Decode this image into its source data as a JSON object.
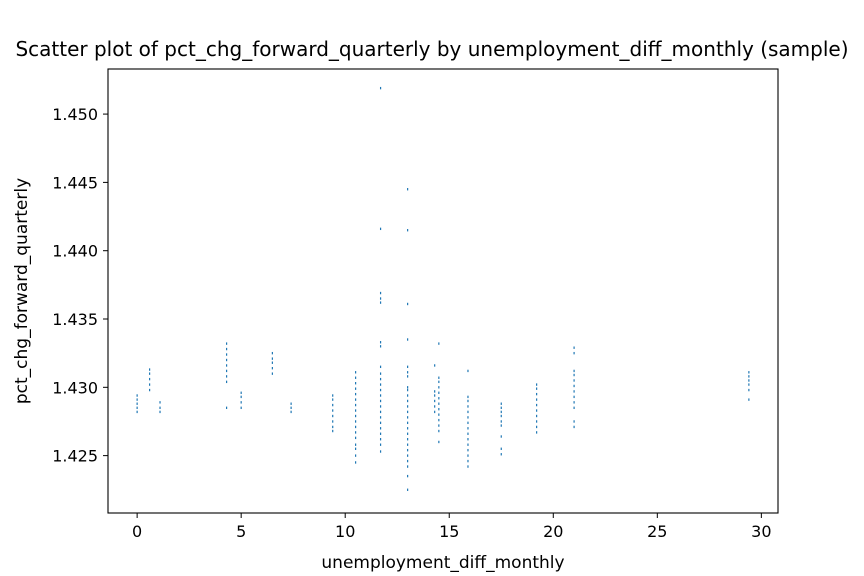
{
  "chart_data": {
    "type": "scatter",
    "title": "Scatter plot of pct_chg_forward_quarterly by unemployment_diff_monthly (sample)",
    "xlabel": "unemployment_diff_monthly",
    "ylabel": "pct_chg_forward_quarterly",
    "xlim": [
      -1.4,
      30.8
    ],
    "ylim": [
      1.4208,
      1.4533
    ],
    "xticks": [
      0,
      5,
      10,
      15,
      20,
      25,
      30
    ],
    "xtick_labels": [
      "0",
      "5",
      "10",
      "15",
      "20",
      "25",
      "30"
    ],
    "yticks": [
      1.425,
      1.43,
      1.435,
      1.44,
      1.445,
      1.45
    ],
    "ytick_labels": [
      "1.425",
      "1.430",
      "1.435",
      "1.440",
      "1.445",
      "1.450"
    ],
    "grid": false,
    "marker_color": "#1f77b4",
    "series": [
      {
        "x": 0.0,
        "y": [
          1.4282,
          1.4285,
          1.4288,
          1.4291,
          1.4294
        ]
      },
      {
        "x": 0.6,
        "y": [
          1.4298,
          1.4302,
          1.4306,
          1.431,
          1.4313
        ]
      },
      {
        "x": 1.1,
        "y": [
          1.4282,
          1.4285,
          1.4289
        ]
      },
      {
        "x": 4.3,
        "y": [
          1.4285,
          1.4304,
          1.4308,
          1.4312,
          1.4316,
          1.432,
          1.4324,
          1.4328,
          1.4332
        ]
      },
      {
        "x": 5.0,
        "y": [
          1.4285,
          1.4289,
          1.4293,
          1.4296
        ]
      },
      {
        "x": 6.5,
        "y": [
          1.431,
          1.4314,
          1.4318,
          1.4321,
          1.4325
        ]
      },
      {
        "x": 7.4,
        "y": [
          1.4282,
          1.4285,
          1.4288
        ]
      },
      {
        "x": 9.4,
        "y": [
          1.4268,
          1.4271,
          1.4275,
          1.4279,
          1.4283,
          1.4287,
          1.4291,
          1.4294
        ]
      },
      {
        "x": 10.5,
        "y": [
          1.4245,
          1.425,
          1.4255,
          1.4258,
          1.4263,
          1.4267,
          1.4271,
          1.4275,
          1.4279,
          1.4283,
          1.4287,
          1.4291,
          1.4295,
          1.4299,
          1.4303,
          1.4307,
          1.4311
        ]
      },
      {
        "x": 11.7,
        "y": [
          1.4253,
          1.4258,
          1.4262,
          1.4266,
          1.427,
          1.4274,
          1.4278,
          1.4282,
          1.4286,
          1.429,
          1.4294,
          1.4298,
          1.4302,
          1.4306,
          1.431,
          1.4315,
          1.433,
          1.4333,
          1.4362,
          1.4365,
          1.4369,
          1.4416,
          1.4519
        ]
      },
      {
        "x": 13.0,
        "y": [
          1.4225,
          1.4235,
          1.4242,
          1.4246,
          1.425,
          1.4254,
          1.4258,
          1.4262,
          1.4266,
          1.427,
          1.4274,
          1.4278,
          1.4282,
          1.4286,
          1.429,
          1.4294,
          1.4298,
          1.43,
          1.4308,
          1.4311,
          1.4315,
          1.4335,
          1.4361,
          1.4415,
          1.4445
        ]
      },
      {
        "x": 14.3,
        "y": [
          1.4282,
          1.4286,
          1.429,
          1.4294,
          1.4297,
          1.4316
        ]
      },
      {
        "x": 14.5,
        "y": [
          1.426,
          1.4268,
          1.4272,
          1.4276,
          1.428,
          1.4284,
          1.4288,
          1.4292,
          1.4296,
          1.43,
          1.4304,
          1.4307,
          1.4332
        ]
      },
      {
        "x": 15.9,
        "y": [
          1.4242,
          1.4246,
          1.425,
          1.4254,
          1.4258,
          1.4262,
          1.4266,
          1.427,
          1.4274,
          1.4278,
          1.4282,
          1.4286,
          1.429,
          1.4293,
          1.4312
        ]
      },
      {
        "x": 17.5,
        "y": [
          1.4251,
          1.4255,
          1.4264,
          1.4272,
          1.4275,
          1.4279,
          1.4282,
          1.4285,
          1.4288
        ]
      },
      {
        "x": 19.2,
        "y": [
          1.4267,
          1.4271,
          1.4275,
          1.4279,
          1.4283,
          1.4287,
          1.4291,
          1.4295,
          1.4299,
          1.4302
        ]
      },
      {
        "x": 21.0,
        "y": [
          1.4271,
          1.4275,
          1.4285,
          1.4289,
          1.4293,
          1.4297,
          1.4301,
          1.4305,
          1.4309,
          1.4312,
          1.4325,
          1.4329
        ]
      },
      {
        "x": 29.4,
        "y": [
          1.4291,
          1.4298,
          1.4302,
          1.4305,
          1.4308,
          1.4311
        ]
      }
    ]
  }
}
